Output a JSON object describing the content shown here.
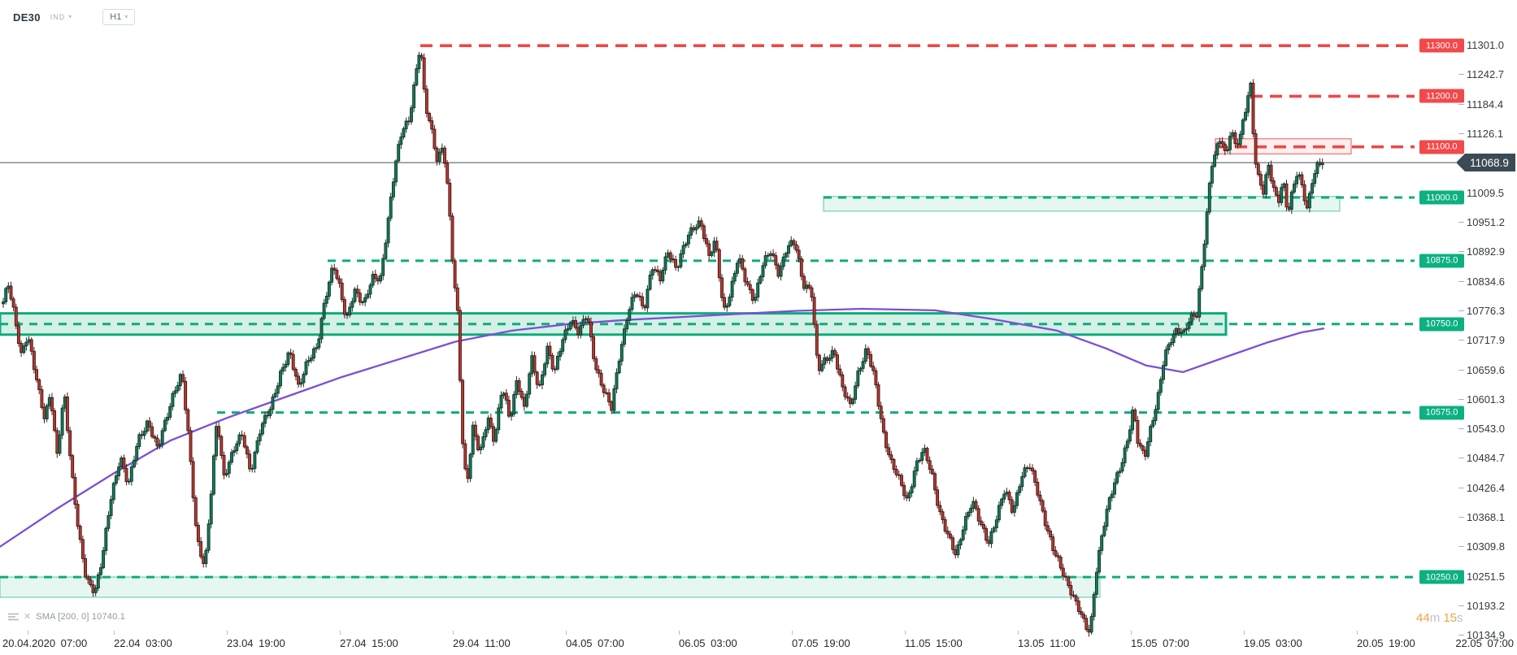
{
  "header": {
    "symbol": "DE30",
    "market_badge": "IND",
    "timeframe": "H1"
  },
  "footer": {
    "indicator_label": "SMA [200, 0] 10740.1",
    "timer": {
      "minutes": "44",
      "minutes_unit": "m",
      "seconds": "15",
      "seconds_unit": "s"
    }
  },
  "colors": {
    "up_candle": "#17795b",
    "up_candle_border": "#0a3526",
    "down_candle": "#b23c35",
    "down_candle_border": "#471310",
    "sma_line": "#7c4fd4",
    "support_green": "#0eac7b",
    "resistance_red": "#ef4747",
    "pill_green": "#0cb081",
    "pill_red": "#f2494b",
    "price_tag_bg": "#3b4a54",
    "current_price_line": "#44525c",
    "timer_orange": "#f2a33c"
  },
  "chart_data": {
    "type": "candlestick",
    "symbol": "DE30",
    "timeframe": "H1",
    "current_price": 11068.9,
    "current_price_label": "11068.9",
    "y_axis": {
      "ticks": [
        "11301.0",
        "11242.7",
        "11184.4",
        "11126.1",
        "11009.5",
        "10951.2",
        "10892.9",
        "10834.6",
        "10776.3",
        "10717.9",
        "10659.6",
        "10601.3",
        "10543.0",
        "10484.7",
        "10426.4",
        "10368.1",
        "10309.8",
        "10251.5",
        "10193.2",
        "10134.9"
      ],
      "range": [
        10134.9,
        11301.0
      ]
    },
    "x_axis": {
      "ticks": [
        "20.04.2020 07:00",
        "22.04 03:00",
        "23.04 19:00",
        "27.04 15:00",
        "29.04 11:00",
        "04.05 07:00",
        "06.05 03:00",
        "07.05 19:00",
        "11.05 15:00",
        "13.05 11:00",
        "15.05 07:00",
        "19.05 03:00",
        "20.05 19:00",
        "22.05 07:00"
      ]
    },
    "levels": [
      {
        "price": 11300.0,
        "label": "11300.0",
        "kind": "resistance",
        "x_start": 517
      },
      {
        "price": 11200.0,
        "label": "11200.0",
        "kind": "resistance",
        "x_start": 1538
      },
      {
        "price": 11100.0,
        "label": "11100.0",
        "kind": "resistance",
        "x_start": 1495
      },
      {
        "price": 11000.0,
        "label": "11000.0",
        "kind": "support",
        "x_start": 1013
      },
      {
        "price": 10875.0,
        "label": "10875.0",
        "kind": "support",
        "x_start": 403
      },
      {
        "price": 10750.0,
        "label": "10750.0",
        "kind": "support",
        "x_start": 0
      },
      {
        "price": 10575.0,
        "label": "10575.0",
        "kind": "support",
        "x_start": 267
      },
      {
        "price": 10250.0,
        "label": "10250.0",
        "kind": "support",
        "x_start": 0
      }
    ],
    "zones": [
      {
        "kind": "supply",
        "style": "red-light",
        "x_range": [
          1495,
          1662
        ],
        "price_range": [
          11086,
          11116
        ]
      },
      {
        "kind": "demand",
        "style": "green-light",
        "x_range": [
          1013,
          1648
        ],
        "price_range": [
          10973,
          11002
        ]
      },
      {
        "kind": "demand",
        "style": "green-strong",
        "x_range": [
          0,
          1508
        ],
        "price_range": [
          10729,
          10771
        ]
      },
      {
        "kind": "demand",
        "style": "green-light",
        "x_range": [
          0,
          1353
        ],
        "price_range": [
          10210,
          10250
        ]
      }
    ],
    "series_note": "approximate price path traced from chart (x pixel, price)",
    "price_path": [
      [
        4,
        10790
      ],
      [
        10,
        10832
      ],
      [
        18,
        10770
      ],
      [
        26,
        10688
      ],
      [
        34,
        10724
      ],
      [
        44,
        10650
      ],
      [
        55,
        10565
      ],
      [
        62,
        10612
      ],
      [
        70,
        10485
      ],
      [
        79,
        10618
      ],
      [
        88,
        10460
      ],
      [
        97,
        10330
      ],
      [
        106,
        10245
      ],
      [
        117,
        10225
      ],
      [
        126,
        10288
      ],
      [
        136,
        10400
      ],
      [
        148,
        10492
      ],
      [
        158,
        10430
      ],
      [
        170,
        10520
      ],
      [
        182,
        10560
      ],
      [
        194,
        10500
      ],
      [
        204,
        10560
      ],
      [
        214,
        10620
      ],
      [
        224,
        10650
      ],
      [
        232,
        10520
      ],
      [
        242,
        10330
      ],
      [
        252,
        10270
      ],
      [
        260,
        10420
      ],
      [
        267,
        10565
      ],
      [
        275,
        10450
      ],
      [
        287,
        10500
      ],
      [
        298,
        10530
      ],
      [
        308,
        10460
      ],
      [
        320,
        10540
      ],
      [
        332,
        10580
      ],
      [
        345,
        10655
      ],
      [
        356,
        10692
      ],
      [
        367,
        10625
      ],
      [
        378,
        10680
      ],
      [
        390,
        10700
      ],
      [
        400,
        10800
      ],
      [
        410,
        10872
      ],
      [
        418,
        10820
      ],
      [
        426,
        10752
      ],
      [
        436,
        10820
      ],
      [
        448,
        10790
      ],
      [
        458,
        10838
      ],
      [
        468,
        10842
      ],
      [
        476,
        10940
      ],
      [
        486,
        11060
      ],
      [
        495,
        11135
      ],
      [
        503,
        11155
      ],
      [
        511,
        11240
      ],
      [
        517,
        11302
      ],
      [
        523,
        11180
      ],
      [
        530,
        11140
      ],
      [
        538,
        11075
      ],
      [
        545,
        11105
      ],
      [
        552,
        10990
      ],
      [
        558,
        10840
      ],
      [
        563,
        10770
      ],
      [
        569,
        10520
      ],
      [
        574,
        10430
      ],
      [
        582,
        10545
      ],
      [
        590,
        10490
      ],
      [
        600,
        10570
      ],
      [
        608,
        10520
      ],
      [
        618,
        10625
      ],
      [
        627,
        10560
      ],
      [
        636,
        10645
      ],
      [
        645,
        10580
      ],
      [
        654,
        10680
      ],
      [
        663,
        10620
      ],
      [
        673,
        10705
      ],
      [
        682,
        10650
      ],
      [
        692,
        10720
      ],
      [
        702,
        10762
      ],
      [
        712,
        10730
      ],
      [
        722,
        10770
      ],
      [
        732,
        10672
      ],
      [
        742,
        10620
      ],
      [
        752,
        10580
      ],
      [
        762,
        10690
      ],
      [
        772,
        10770
      ],
      [
        782,
        10812
      ],
      [
        792,
        10780
      ],
      [
        802,
        10868
      ],
      [
        812,
        10835
      ],
      [
        822,
        10895
      ],
      [
        832,
        10862
      ],
      [
        842,
        10905
      ],
      [
        852,
        10938
      ],
      [
        862,
        10955
      ],
      [
        872,
        10882
      ],
      [
        880,
        10912
      ],
      [
        890,
        10775
      ],
      [
        898,
        10812
      ],
      [
        908,
        10880
      ],
      [
        918,
        10830
      ],
      [
        928,
        10800
      ],
      [
        938,
        10865
      ],
      [
        948,
        10892
      ],
      [
        958,
        10852
      ],
      [
        968,
        10902
      ],
      [
        978,
        10908
      ],
      [
        988,
        10830
      ],
      [
        998,
        10820
      ],
      [
        1006,
        10655
      ],
      [
        1016,
        10680
      ],
      [
        1026,
        10700
      ],
      [
        1036,
        10622
      ],
      [
        1046,
        10585
      ],
      [
        1056,
        10660
      ],
      [
        1066,
        10700
      ],
      [
        1076,
        10638
      ],
      [
        1086,
        10540
      ],
      [
        1096,
        10478
      ],
      [
        1106,
        10440
      ],
      [
        1116,
        10400
      ],
      [
        1126,
        10470
      ],
      [
        1136,
        10500
      ],
      [
        1146,
        10455
      ],
      [
        1156,
        10380
      ],
      [
        1166,
        10330
      ],
      [
        1176,
        10290
      ],
      [
        1186,
        10360
      ],
      [
        1196,
        10400
      ],
      [
        1206,
        10352
      ],
      [
        1216,
        10320
      ],
      [
        1226,
        10370
      ],
      [
        1236,
        10420
      ],
      [
        1246,
        10380
      ],
      [
        1256,
        10450
      ],
      [
        1266,
        10470
      ],
      [
        1276,
        10420
      ],
      [
        1286,
        10360
      ],
      [
        1296,
        10300
      ],
      [
        1306,
        10262
      ],
      [
        1316,
        10230
      ],
      [
        1326,
        10190
      ],
      [
        1335,
        10150
      ],
      [
        1341,
        10140
      ],
      [
        1348,
        10260
      ],
      [
        1356,
        10340
      ],
      [
        1364,
        10395
      ],
      [
        1372,
        10440
      ],
      [
        1380,
        10480
      ],
      [
        1388,
        10530
      ],
      [
        1394,
        10580
      ],
      [
        1400,
        10510
      ],
      [
        1408,
        10490
      ],
      [
        1416,
        10552
      ],
      [
        1424,
        10600
      ],
      [
        1432,
        10680
      ],
      [
        1440,
        10720
      ],
      [
        1448,
        10744
      ],
      [
        1456,
        10730
      ],
      [
        1464,
        10758
      ],
      [
        1472,
        10770
      ],
      [
        1478,
        10860
      ],
      [
        1484,
        10960
      ],
      [
        1490,
        11060
      ],
      [
        1496,
        11090
      ],
      [
        1502,
        11120
      ],
      [
        1508,
        11080
      ],
      [
        1514,
        11140
      ],
      [
        1520,
        11100
      ],
      [
        1526,
        11120
      ],
      [
        1533,
        11180
      ],
      [
        1538,
        11230
      ],
      [
        1543,
        11090
      ],
      [
        1548,
        11040
      ],
      [
        1554,
        11010
      ],
      [
        1560,
        11060
      ],
      [
        1566,
        11020
      ],
      [
        1572,
        10990
      ],
      [
        1578,
        11040
      ],
      [
        1584,
        10968
      ],
      [
        1590,
        11010
      ],
      [
        1596,
        11050
      ],
      [
        1602,
        11020
      ],
      [
        1608,
        10980
      ],
      [
        1614,
        11035
      ],
      [
        1620,
        11060
      ],
      [
        1628,
        11069
      ]
    ],
    "sma": {
      "name": "SMA",
      "period": 200,
      "shift": 0,
      "value": 10740.1,
      "path": [
        [
          0,
          10310
        ],
        [
          70,
          10385
        ],
        [
          140,
          10455
        ],
        [
          210,
          10520
        ],
        [
          280,
          10565
        ],
        [
          350,
          10605
        ],
        [
          420,
          10645
        ],
        [
          490,
          10680
        ],
        [
          560,
          10715
        ],
        [
          630,
          10737
        ],
        [
          700,
          10750
        ],
        [
          770,
          10758
        ],
        [
          840,
          10764
        ],
        [
          910,
          10770
        ],
        [
          980,
          10776
        ],
        [
          1060,
          10780
        ],
        [
          1150,
          10777
        ],
        [
          1220,
          10760
        ],
        [
          1300,
          10737
        ],
        [
          1360,
          10702
        ],
        [
          1410,
          10668
        ],
        [
          1455,
          10655
        ],
        [
          1510,
          10686
        ],
        [
          1560,
          10714
        ],
        [
          1600,
          10733
        ],
        [
          1628,
          10741
        ]
      ]
    }
  }
}
